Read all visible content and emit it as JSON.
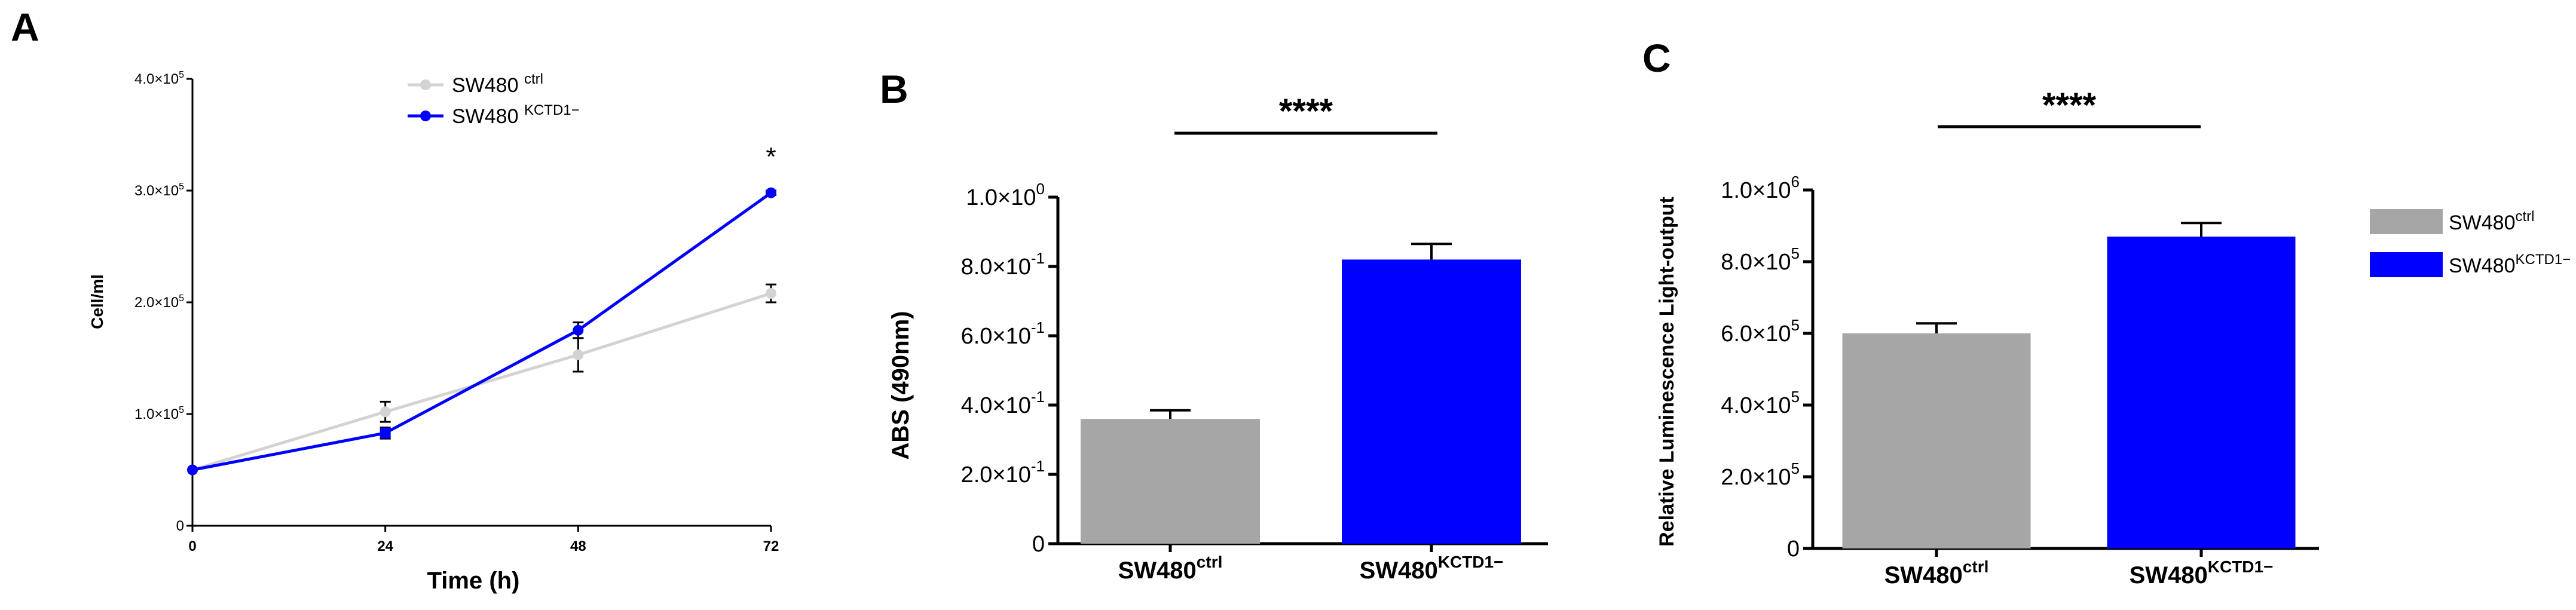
{
  "figure": {
    "panels": [
      "A",
      "B",
      "C"
    ]
  },
  "colors": {
    "ctrl": "#d3d3d3",
    "ctrl_bar": "#a6a6a6",
    "kctd1": "#0000ff",
    "error": "#000000"
  },
  "chart_data": [
    {
      "panel": "A",
      "type": "line",
      "xlabel": "Time (h)",
      "ylabel": "Cell/ml",
      "xlim": [
        0,
        72
      ],
      "ylim": [
        0,
        400000
      ],
      "x": [
        0,
        24,
        48,
        72
      ],
      "x_ticks": [
        "0",
        "24",
        "48",
        "72"
      ],
      "y_ticks": [
        {
          "value": 0,
          "base": "0",
          "exp": ""
        },
        {
          "value": 100000,
          "base": "1.0×10",
          "exp": "5"
        },
        {
          "value": 200000,
          "base": "2.0×10",
          "exp": "5"
        },
        {
          "value": 300000,
          "base": "3.0×10",
          "exp": "5"
        },
        {
          "value": 400000,
          "base": "4.0×10",
          "exp": "5"
        }
      ],
      "series": [
        {
          "name": "SW480",
          "name_sup": "ctrl",
          "color": "#d3d3d3",
          "values": [
            50000,
            102000,
            153000,
            208000
          ],
          "errors": [
            0,
            9000,
            15000,
            8000
          ]
        },
        {
          "name": "SW480",
          "name_sup": "KCTD1−",
          "color": "#0000ff",
          "values": [
            50000,
            83000,
            175000,
            298000
          ],
          "errors": [
            0,
            5000,
            7000,
            2000
          ]
        }
      ],
      "annotations": [
        {
          "text": "*",
          "x": 72,
          "y": 330000
        }
      ],
      "grid": false,
      "legend_position": "top-center"
    },
    {
      "panel": "B",
      "type": "bar",
      "ylabel": "ABS (490nm)",
      "ylim": [
        0,
        1.0
      ],
      "categories": [
        {
          "base": "SW480",
          "sup": "ctrl"
        },
        {
          "base": "SW480",
          "sup": "KCTD1−"
        }
      ],
      "values": [
        0.36,
        0.82
      ],
      "errors": [
        0.025,
        0.045
      ],
      "bar_colors": [
        "#a6a6a6",
        "#0000ff"
      ],
      "y_ticks": [
        {
          "value": 0,
          "base": "0",
          "exp": ""
        },
        {
          "value": 0.2,
          "base": "2.0×10",
          "exp": "-1"
        },
        {
          "value": 0.4,
          "base": "4.0×10",
          "exp": "-1"
        },
        {
          "value": 0.6,
          "base": "6.0×10",
          "exp": "-1"
        },
        {
          "value": 0.8,
          "base": "8.0×10",
          "exp": "-1"
        },
        {
          "value": 1.0,
          "base": "1.0×10",
          "exp": "0"
        }
      ],
      "significance": "****",
      "grid": false
    },
    {
      "panel": "C",
      "type": "bar",
      "ylabel": "Relative Luminescence Light-output",
      "ylim": [
        0,
        1000000
      ],
      "categories": [
        {
          "base": "SW480",
          "sup": "ctrl"
        },
        {
          "base": "SW480",
          "sup": "KCTD1−"
        }
      ],
      "values": [
        600000,
        870000
      ],
      "errors": [
        28000,
        38000
      ],
      "bar_colors": [
        "#a6a6a6",
        "#0000ff"
      ],
      "y_ticks": [
        {
          "value": 0,
          "base": "0",
          "exp": ""
        },
        {
          "value": 200000,
          "base": "2.0×10",
          "exp": "5"
        },
        {
          "value": 400000,
          "base": "4.0×10",
          "exp": "5"
        },
        {
          "value": 600000,
          "base": "6.0×10",
          "exp": "5"
        },
        {
          "value": 800000,
          "base": "8.0×10",
          "exp": "5"
        },
        {
          "value": 1000000,
          "base": "1.0×10",
          "exp": "6"
        }
      ],
      "significance": "****",
      "legend": [
        {
          "base": "SW480",
          "sup": "ctrl",
          "color": "#a6a6a6"
        },
        {
          "base": "SW480",
          "sup": "KCTD1−",
          "color": "#0000ff"
        }
      ],
      "grid": false,
      "legend_position": "right"
    }
  ]
}
